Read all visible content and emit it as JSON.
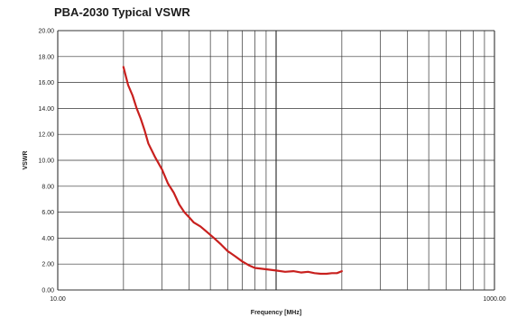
{
  "chart_data": {
    "type": "line",
    "title": "PBA-2030 Typical VSWR",
    "xlabel": "Frequency [MHz]",
    "ylabel": "VSWR",
    "x_scale": "log",
    "xlim": [
      10,
      1000
    ],
    "ylim": [
      0,
      20
    ],
    "x_tick_labels": [
      "10.00",
      "1000.00"
    ],
    "y_tick_labels": [
      "0.00",
      "2.00",
      "4.00",
      "6.00",
      "8.00",
      "10.00",
      "12.00",
      "14.00",
      "16.00",
      "18.00",
      "20.00"
    ],
    "grid": true,
    "line_color": "#c8201e",
    "series": [
      {
        "x": [
          20,
          21,
          22,
          23,
          24,
          25,
          26,
          28,
          30,
          32,
          34,
          36,
          38,
          40,
          42,
          45,
          48,
          52,
          56,
          60,
          65,
          70,
          75,
          80,
          90,
          100,
          110,
          120,
          130,
          140,
          150,
          160,
          170,
          180,
          190,
          200
        ],
        "y": [
          17.2,
          15.8,
          15.0,
          14.0,
          13.2,
          12.3,
          11.3,
          10.2,
          9.3,
          8.2,
          7.5,
          6.6,
          6.0,
          5.6,
          5.2,
          4.9,
          4.5,
          4.0,
          3.5,
          3.0,
          2.6,
          2.2,
          1.9,
          1.7,
          1.6,
          1.5,
          1.4,
          1.45,
          1.35,
          1.4,
          1.3,
          1.25,
          1.25,
          1.3,
          1.3,
          1.45
        ]
      }
    ]
  }
}
